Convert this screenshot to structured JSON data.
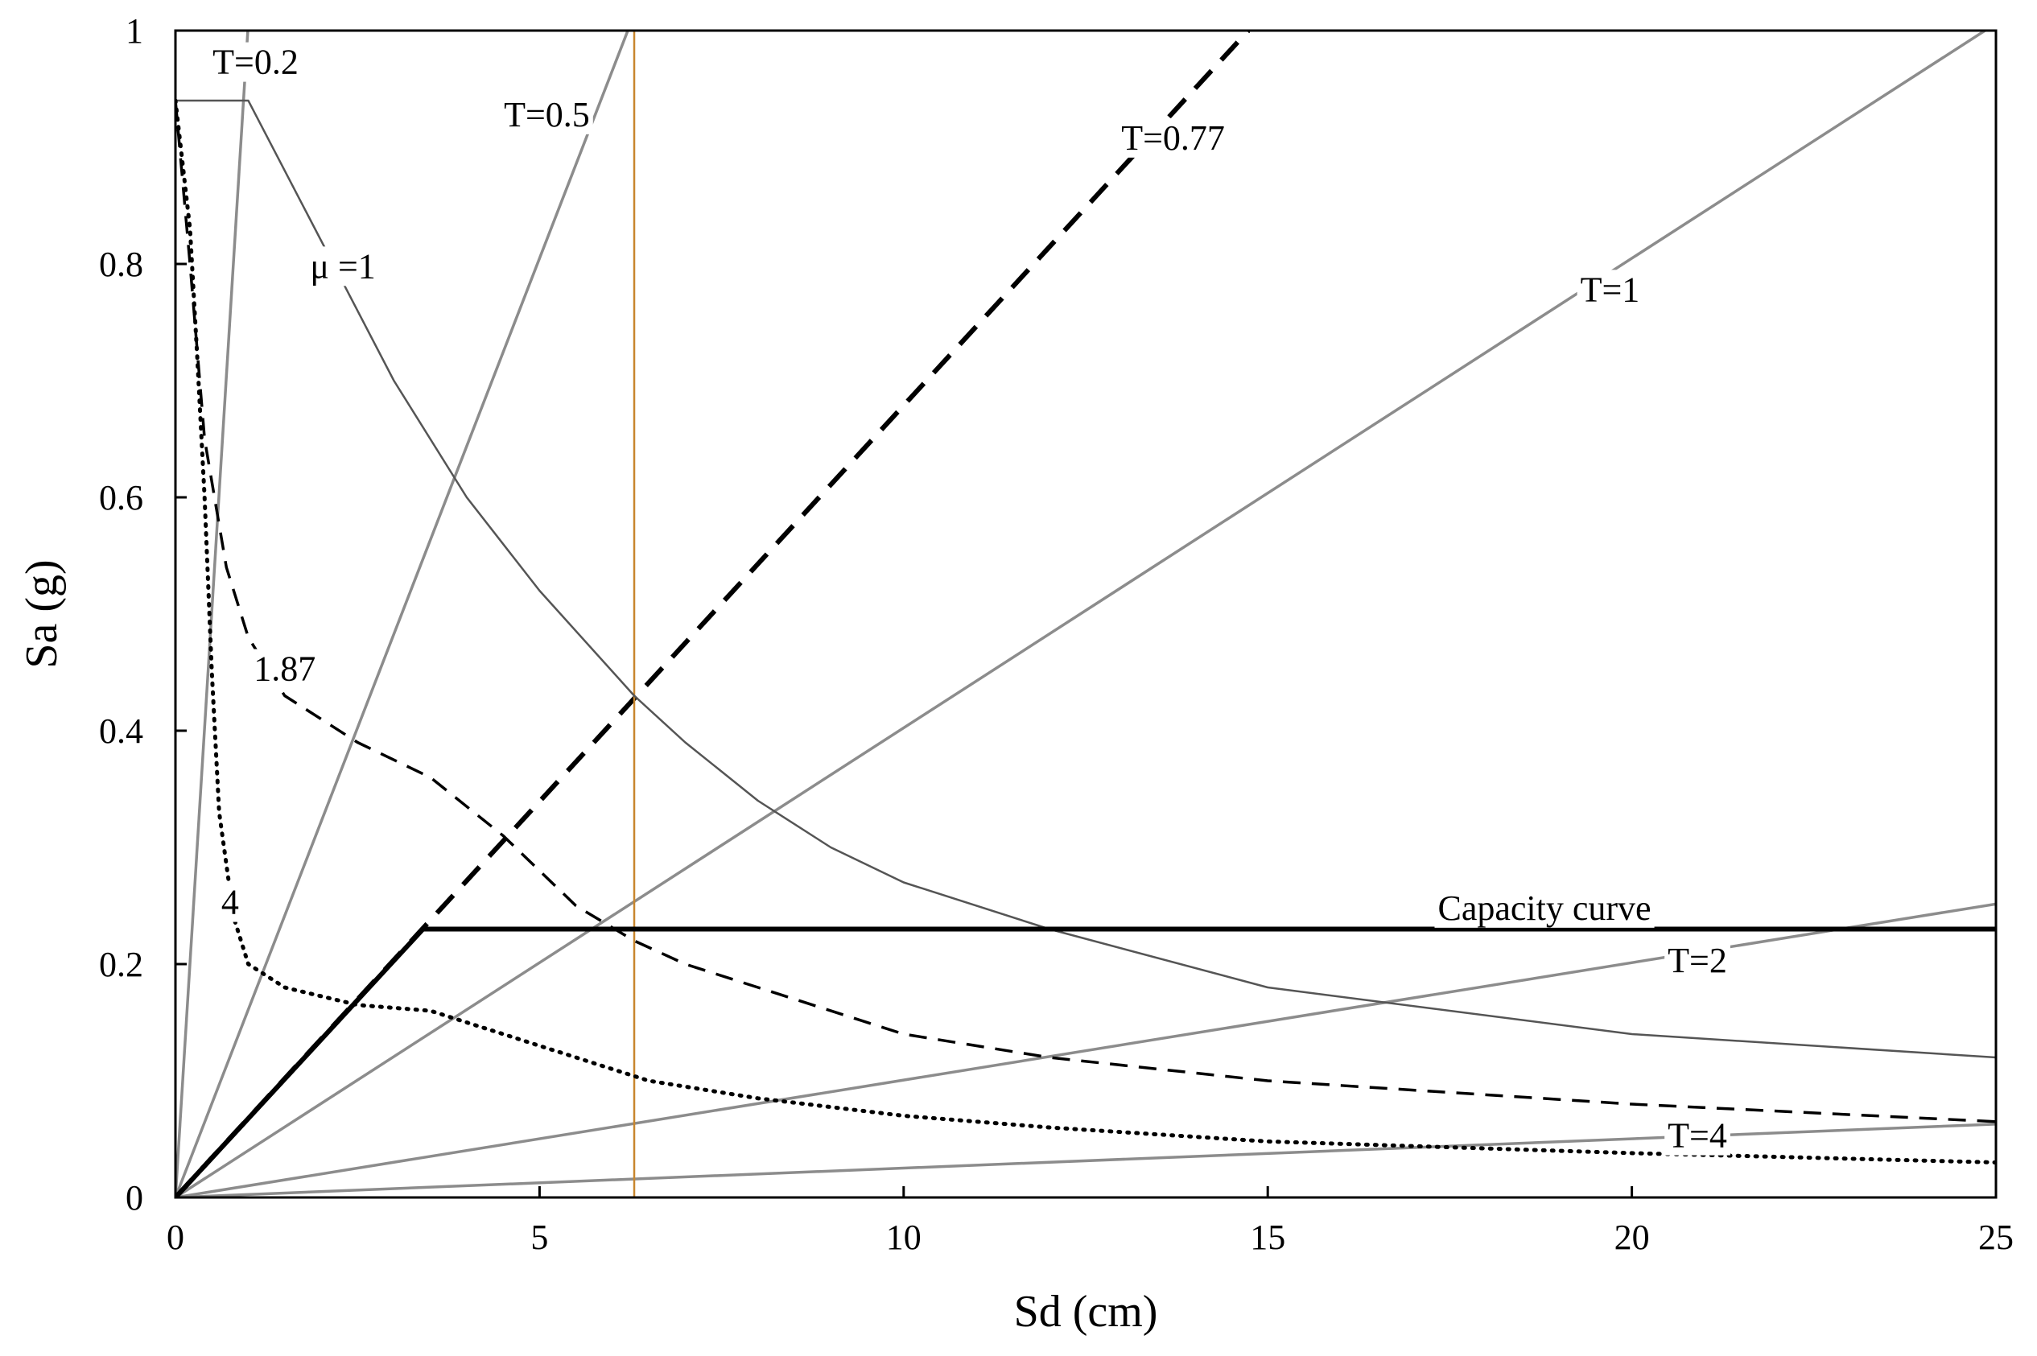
{
  "chart_data": {
    "type": "line",
    "title": "",
    "xlabel": "Sd (cm)",
    "ylabel": "Sa (g)",
    "xlim": [
      0,
      25
    ],
    "ylim": [
      0,
      1
    ],
    "grid": false,
    "legend": "none",
    "x_ticks": [
      "0",
      "5",
      "10",
      "15",
      "20",
      "25"
    ],
    "y_ticks": [
      "0",
      "0.2",
      "0.4",
      "0.6",
      "0.8",
      "1"
    ],
    "period_lines": [
      {
        "label": "T=0.2",
        "period": 0.2,
        "color": "#8c8c8c"
      },
      {
        "label": "T=0.5",
        "period": 0.5,
        "color": "#8c8c8c"
      },
      {
        "label": "T=0.77",
        "period": 0.77,
        "color": "#000000",
        "style": "dashed"
      },
      {
        "label": "T=1",
        "period": 1,
        "color": "#8c8c8c"
      },
      {
        "label": "T=2",
        "period": 2,
        "color": "#8c8c8c"
      },
      {
        "label": "T=4",
        "period": 4,
        "color": "#8c8c8c"
      }
    ],
    "series": [
      {
        "label": "μ =1",
        "color": "#555555",
        "style": "solid",
        "points": [
          [
            0,
            0.94
          ],
          [
            1,
            0.94
          ],
          [
            2,
            0.82
          ],
          [
            3,
            0.7
          ],
          [
            4,
            0.6
          ],
          [
            5,
            0.52
          ],
          [
            6.3,
            0.43
          ],
          [
            7,
            0.39
          ],
          [
            8,
            0.34
          ],
          [
            9,
            0.3
          ],
          [
            10,
            0.27
          ],
          [
            12,
            0.23
          ],
          [
            15,
            0.18
          ],
          [
            20,
            0.14
          ],
          [
            25,
            0.12
          ]
        ]
      },
      {
        "label": "1.87",
        "color": "#000000",
        "style": "dashed",
        "points": [
          [
            0,
            0.94
          ],
          [
            0.2,
            0.8
          ],
          [
            0.4,
            0.65
          ],
          [
            0.7,
            0.54
          ],
          [
            1,
            0.48
          ],
          [
            1.5,
            0.43
          ],
          [
            2.5,
            0.39
          ],
          [
            3.5,
            0.36
          ],
          [
            4.5,
            0.31
          ],
          [
            5.5,
            0.25
          ],
          [
            6.3,
            0.22
          ],
          [
            7,
            0.2
          ],
          [
            8,
            0.18
          ],
          [
            10,
            0.14
          ],
          [
            12,
            0.12
          ],
          [
            15,
            0.1
          ],
          [
            20,
            0.08
          ],
          [
            25,
            0.065
          ]
        ]
      },
      {
        "label": "4",
        "color": "#000000",
        "style": "dotted",
        "points": [
          [
            0,
            0.94
          ],
          [
            0.2,
            0.83
          ],
          [
            0.3,
            0.72
          ],
          [
            0.4,
            0.6
          ],
          [
            0.5,
            0.45
          ],
          [
            0.6,
            0.33
          ],
          [
            0.8,
            0.24
          ],
          [
            1,
            0.2
          ],
          [
            1.5,
            0.18
          ],
          [
            2.5,
            0.165
          ],
          [
            3.5,
            0.16
          ],
          [
            4.5,
            0.14
          ],
          [
            5.5,
            0.12
          ],
          [
            6.5,
            0.1
          ],
          [
            8,
            0.085
          ],
          [
            10,
            0.07
          ],
          [
            12,
            0.06
          ],
          [
            15,
            0.048
          ],
          [
            20,
            0.038
          ],
          [
            25,
            0.03
          ]
        ]
      },
      {
        "label": "Capacity curve",
        "color": "#000000",
        "style": "bold",
        "points": [
          [
            0,
            0
          ],
          [
            3.4,
            0.23
          ],
          [
            25,
            0.23
          ]
        ]
      }
    ],
    "reference_line": {
      "x": 6.3,
      "color": "#c8862e"
    },
    "labels": [
      {
        "text": "T=0.2",
        "x": 1.1,
        "y": 0.97
      },
      {
        "text": "T=0.5",
        "x": 5.1,
        "y": 0.925
      },
      {
        "text": "T=0.77",
        "x": 13.7,
        "y": 0.905
      },
      {
        "text": "T=1",
        "x": 19.7,
        "y": 0.775
      },
      {
        "text": "T=2",
        "x": 20.9,
        "y": 0.2
      },
      {
        "text": "T=4",
        "x": 20.9,
        "y": 0.05
      },
      {
        "text": "μ =1",
        "x": 2.3,
        "y": 0.795
      },
      {
        "text": "1.87",
        "x": 1.5,
        "y": 0.45
      },
      {
        "text": "4",
        "x": 0.75,
        "y": 0.25
      },
      {
        "text": "Capacity curve",
        "x": 18.8,
        "y": 0.245
      }
    ]
  }
}
